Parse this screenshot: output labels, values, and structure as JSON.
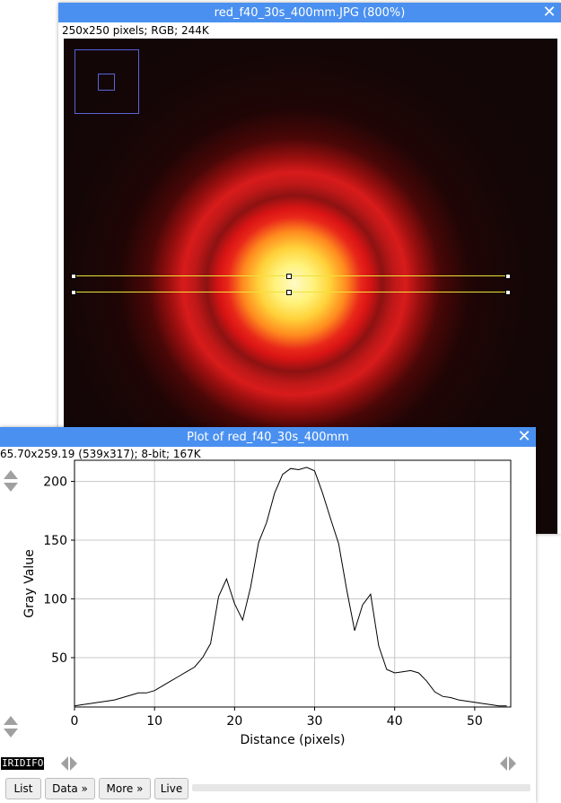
{
  "image_window": {
    "title": "red_f40_30s_400mm.JPG (800%)",
    "info": "250x250 pixels; RGB; 244K",
    "close_glyph": "✕"
  },
  "plot_window": {
    "title": "Plot of red_f40_30s_400mm",
    "info": "65.70x259.19   (539x317); 8-bit; 167K",
    "close_glyph": "✕",
    "logo": "IRIDIFO",
    "buttons": {
      "list": "List",
      "data": "Data »",
      "more": "More »",
      "live": "Live"
    }
  },
  "chart_data": {
    "type": "line",
    "xlabel": "Distance (pixels)",
    "ylabel": "Gray Value",
    "xlim": [
      0,
      54.5
    ],
    "ylim": [
      8,
      218
    ],
    "xticks": [
      0,
      10,
      20,
      30,
      40,
      50
    ],
    "yticks": [
      50,
      100,
      150,
      200
    ],
    "grid": true,
    "series": [
      {
        "x": [
          0,
          1,
          2,
          3,
          4,
          5,
          6,
          7,
          8,
          9,
          10,
          11,
          12,
          13,
          14,
          15,
          16,
          17,
          18,
          19,
          20,
          21,
          22,
          23,
          24,
          25,
          26,
          27,
          28,
          29,
          30,
          31,
          32,
          33,
          34,
          35,
          36,
          37,
          38,
          39,
          40,
          41,
          42,
          43,
          44,
          45,
          46,
          47,
          48,
          49,
          50,
          51,
          52,
          53,
          54
        ],
        "values": [
          9,
          10,
          11,
          12,
          13,
          14,
          16,
          18,
          20,
          20,
          22,
          26,
          30,
          34,
          38,
          42,
          50,
          62,
          102,
          117,
          96,
          82,
          110,
          148,
          165,
          190,
          206,
          211,
          210,
          212,
          209,
          190,
          168,
          147,
          108,
          73,
          95,
          104,
          60,
          40,
          37,
          38,
          39,
          37,
          30,
          21,
          17,
          16,
          14,
          13,
          12,
          11,
          10,
          9,
          9
        ]
      }
    ]
  }
}
